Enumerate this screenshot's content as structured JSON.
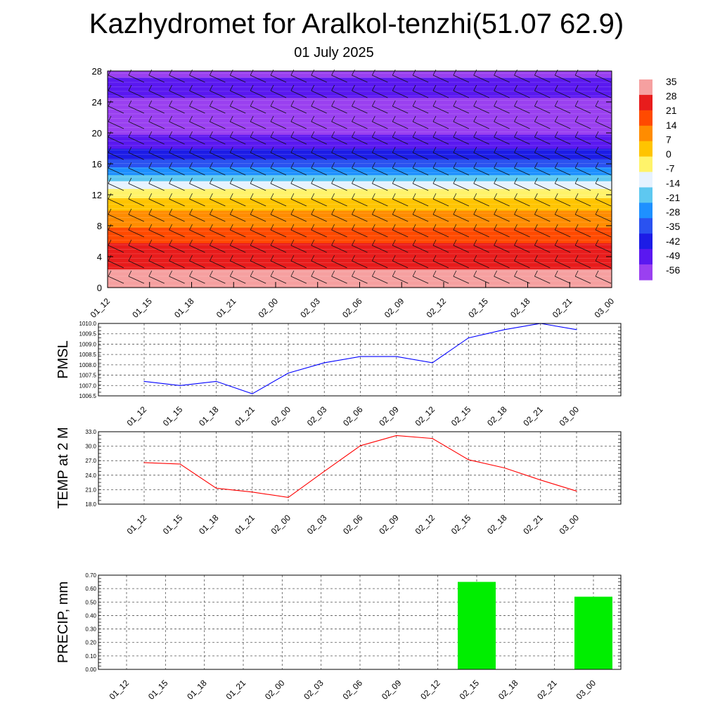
{
  "title": "Kazhydromet for Aralkol-tenzhi(51.07 62.9)",
  "subtitle": "01 July 2025",
  "time_labels": [
    "01_12",
    "01_15",
    "01_18",
    "01_21",
    "02_00",
    "02_03",
    "02_06",
    "02_09",
    "02_12",
    "02_15",
    "02_18",
    "02_21",
    "03_00"
  ],
  "chart_data": [
    {
      "type": "heatmap",
      "name": "upper-air-temperature-section",
      "x": [
        "01_12",
        "01_15",
        "01_18",
        "01_21",
        "02_00",
        "02_03",
        "02_06",
        "02_09",
        "02_12",
        "02_15",
        "02_18",
        "02_21",
        "03_00"
      ],
      "y_ticks": [
        0,
        4,
        8,
        12,
        16,
        20,
        24,
        28
      ],
      "ylim": [
        0,
        28
      ],
      "colorbar_labels": [
        "35",
        "28",
        "21",
        "14",
        "7",
        "0",
        "-7",
        "-14",
        "-21",
        "-28",
        "-35",
        "-42",
        "-49",
        "-56"
      ],
      "vertical_temperature_profile": [
        {
          "level": 0,
          "value": 33
        },
        {
          "level": 2,
          "value": 31
        },
        {
          "level": 4,
          "value": 27
        },
        {
          "level": 6,
          "value": 22
        },
        {
          "level": 8,
          "value": 14
        },
        {
          "level": 10,
          "value": 7
        },
        {
          "level": 11,
          "value": 3
        },
        {
          "level": 12.5,
          "value": -7
        },
        {
          "level": 13.5,
          "value": -14
        },
        {
          "level": 15,
          "value": -28
        },
        {
          "level": 17,
          "value": -42
        },
        {
          "level": 19,
          "value": -53
        },
        {
          "level": 21,
          "value": -58
        },
        {
          "level": 24,
          "value": -56
        },
        {
          "level": 26,
          "value": -53
        },
        {
          "level": 28,
          "value": -57
        }
      ],
      "colors": [
        "#f6a0a0",
        "#e81c1c",
        "#ff4a00",
        "#ff8c00",
        "#ffc400",
        "#fff36a",
        "#e6f2ff",
        "#5ec8f0",
        "#1e90ff",
        "#2a52f0",
        "#1c1ce6",
        "#5a18f0",
        "#9a40f0"
      ],
      "grid": false
    },
    {
      "type": "line",
      "name": "pmsl",
      "ylabel": "PMSL",
      "categories": [
        "01_12",
        "01_15",
        "01_18",
        "01_21",
        "02_00",
        "02_03",
        "02_06",
        "02_09",
        "02_12",
        "02_15",
        "02_18",
        "02_21",
        "03_00"
      ],
      "series": [
        {
          "values": [
            1007.2,
            1007.0,
            1007.2,
            1006.6,
            1007.6,
            1008.1,
            1008.4,
            1008.4,
            1008.1,
            1009.3,
            1009.7,
            1010.0,
            1009.7
          ],
          "color": "#0000ff"
        }
      ],
      "ylim": [
        1006.5,
        1010.0
      ],
      "y_ticks": [
        "1006.5",
        "1007.0",
        "1007.5",
        "1008.0",
        "1008.5",
        "1009.0",
        "1009.5",
        "1010.0"
      ],
      "grid": true
    },
    {
      "type": "line",
      "name": "temp-2m",
      "ylabel": "TEMP at 2 M",
      "categories": [
        "01_12",
        "01_15",
        "01_18",
        "01_21",
        "02_00",
        "02_03",
        "02_06",
        "02_09",
        "02_12",
        "02_15",
        "02_18",
        "02_21",
        "03_00"
      ],
      "series": [
        {
          "values": [
            26.6,
            26.3,
            21.3,
            20.5,
            19.4,
            24.8,
            30.1,
            32.2,
            31.6,
            27.2,
            25.5,
            23.0,
            20.7
          ],
          "color": "#ff0000"
        }
      ],
      "ylim": [
        18.0,
        33.0
      ],
      "y_ticks": [
        "18.0",
        "21.0",
        "24.0",
        "27.0",
        "30.0",
        "33.0"
      ],
      "grid": true
    },
    {
      "type": "bar",
      "name": "precip",
      "ylabel": "PRECIP, mm",
      "categories": [
        "01_12",
        "01_15",
        "01_18",
        "01_21",
        "02_00",
        "02_03",
        "02_06",
        "02_09",
        "02_12",
        "02_15",
        "02_18",
        "02_21",
        "03_00"
      ],
      "values": [
        0,
        0,
        0,
        0,
        0,
        0,
        0,
        0,
        0,
        0.65,
        0,
        0,
        0.54
      ],
      "ylim": [
        0,
        0.7
      ],
      "y_ticks": [
        "0.00",
        "0.10",
        "0.20",
        "0.30",
        "0.40",
        "0.50",
        "0.60",
        "0.70"
      ],
      "bar_color": "#00ee00",
      "grid": true
    }
  ]
}
